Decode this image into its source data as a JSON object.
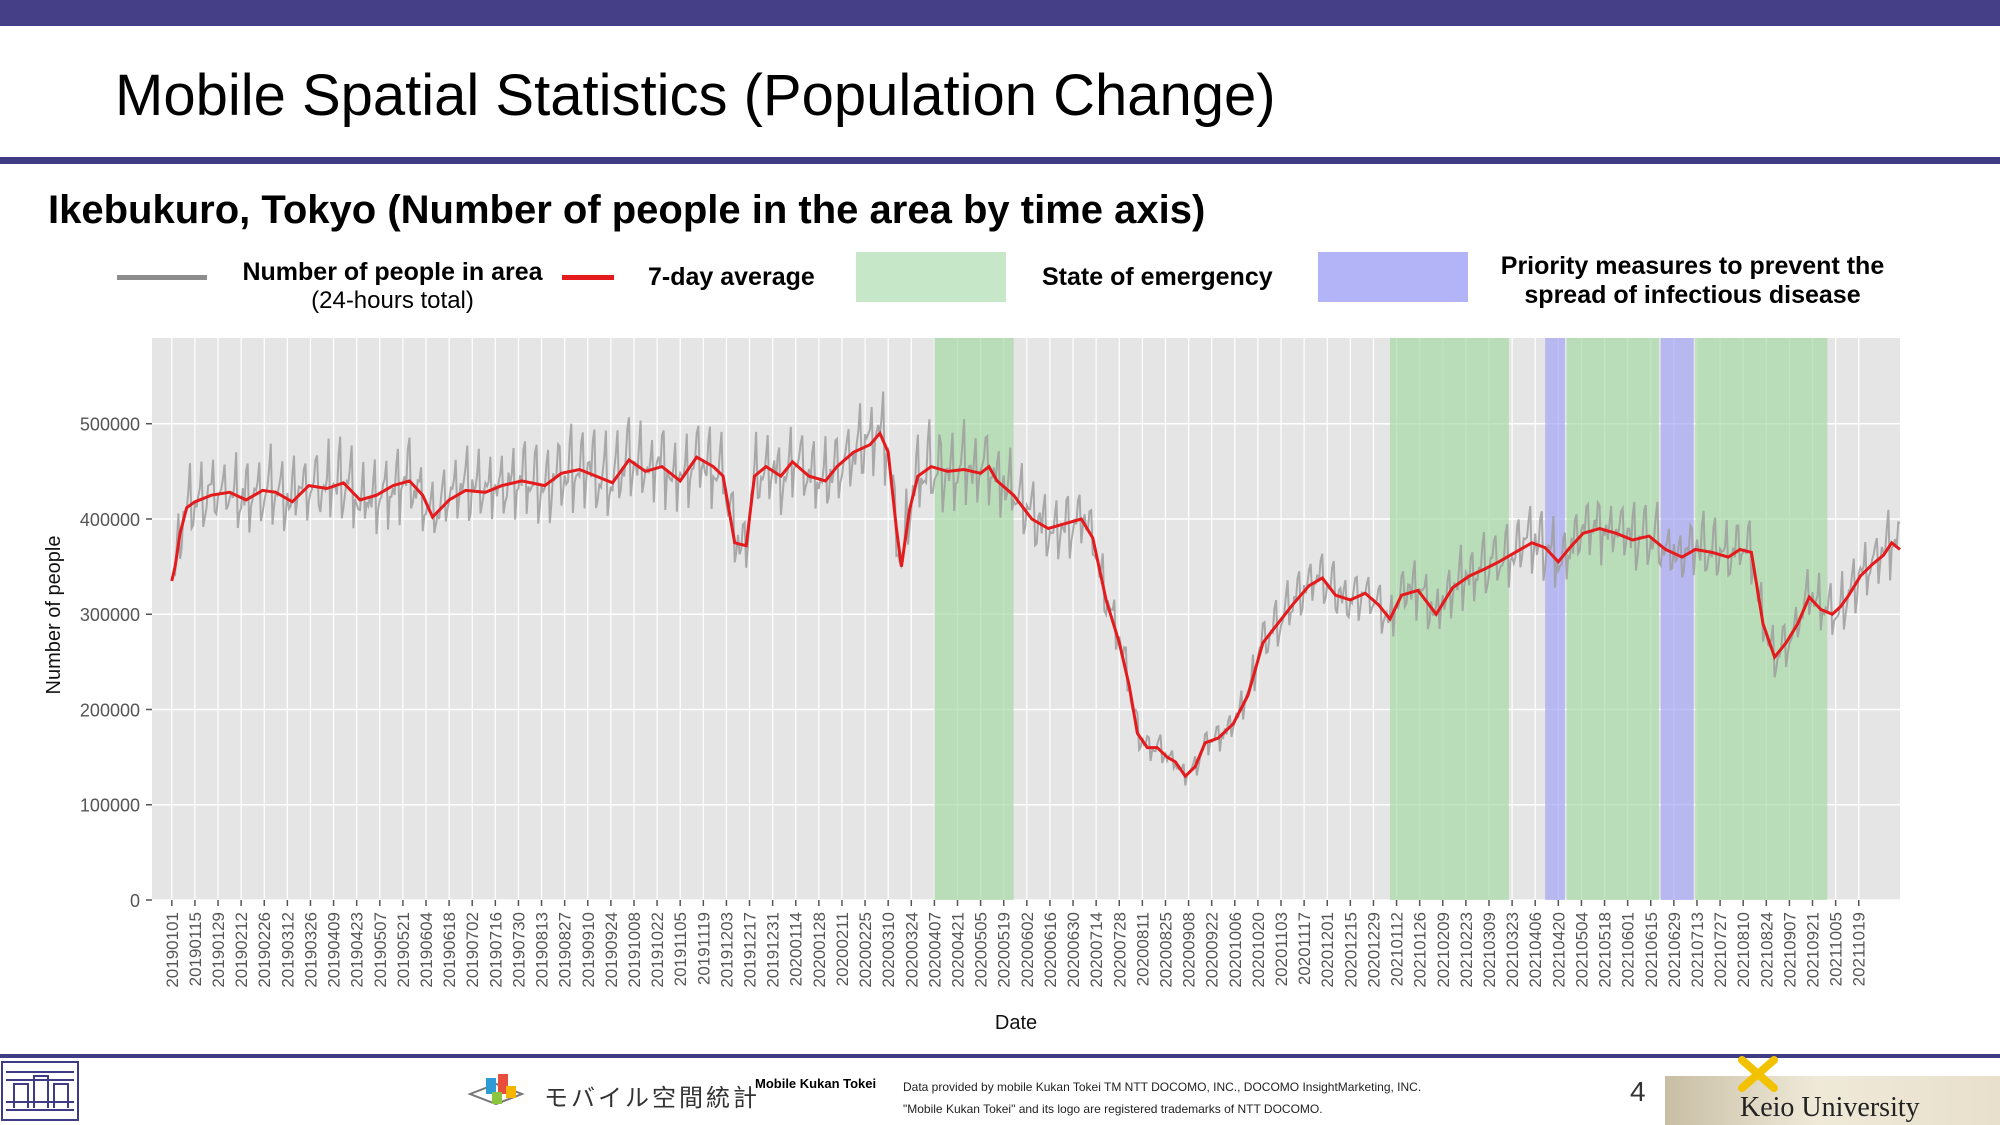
{
  "slide": {
    "title": "Mobile Spatial Statistics (Population Change)",
    "subtitle": "Ikebukuro, Tokyo (Number of people in the area by time axis)",
    "page_number": "4"
  },
  "legend": {
    "raw_label": "Number of people in area",
    "raw_sublabel": "(24-hours total)",
    "avg_label": "7-day average",
    "emergency_label": "State of emergency",
    "priority_label_line1": "Priority measures to prevent the",
    "priority_label_line2": "spread of infectious disease"
  },
  "colors": {
    "raw_series": "#9e9e9e",
    "avg_series": "#e41a1c",
    "emergency": "#a6d8a6",
    "priority": "#a5a5f5",
    "panel": "#e5e5e5",
    "header_bar": "#453f87"
  },
  "footer": {
    "mk_jp": "モバイル空間統計",
    "mk_en": "Mobile Kukan Tokei",
    "credit_line1": "Data provided by mobile Kukan Tokei TM NTT DOCOMO, INC., DOCOMO InsightMarketing, INC.",
    "credit_line2": "\"Mobile Kukan Tokei\" and its logo are registered trademarks of NTT DOCOMO.",
    "university": "Keio University"
  },
  "chart_data": {
    "type": "line",
    "xlabel": "Date",
    "ylabel": "Number of people",
    "ylim": [
      0,
      590000
    ],
    "yticks": [
      0,
      100000,
      200000,
      300000,
      400000,
      500000
    ],
    "xlim": [
      "2018-12-20",
      "2021-11-13"
    ],
    "xtick_labels": [
      "20190101",
      "20190115",
      "20190129",
      "20190212",
      "20190226",
      "20190312",
      "20190326",
      "20190409",
      "20190423",
      "20190507",
      "20190521",
      "20190604",
      "20190618",
      "20190702",
      "20190716",
      "20190730",
      "20190813",
      "20190827",
      "20190910",
      "20190924",
      "20191008",
      "20191022",
      "20191105",
      "20191119",
      "20191203",
      "20191217",
      "20191231",
      "20200114",
      "20200128",
      "20200211",
      "20200225",
      "20200310",
      "20200324",
      "20200407",
      "20200421",
      "20200505",
      "20200519",
      "20200602",
      "20200616",
      "20200630",
      "20200714",
      "20200728",
      "20200811",
      "20200825",
      "20200908",
      "20200922",
      "20201006",
      "20201020",
      "20201103",
      "20201117",
      "20201201",
      "20201215",
      "20201229",
      "20210112",
      "20210126",
      "20210209",
      "20210223",
      "20210309",
      "20210323",
      "20210406",
      "20210420",
      "20210504",
      "20210518",
      "20210601",
      "20210615",
      "20210629",
      "20210713",
      "20210727",
      "20210810",
      "20210824",
      "20210907",
      "20210921",
      "20211005",
      "20211019"
    ],
    "grid": true,
    "shaded_periods": [
      {
        "type": "emergency",
        "start": "2020-04-07",
        "end": "2020-05-25"
      },
      {
        "type": "emergency",
        "start": "2021-01-08",
        "end": "2021-03-21"
      },
      {
        "type": "priority",
        "start": "2021-04-12",
        "end": "2021-04-24"
      },
      {
        "type": "emergency",
        "start": "2021-04-25",
        "end": "2021-06-20"
      },
      {
        "type": "priority",
        "start": "2021-06-21",
        "end": "2021-07-11"
      },
      {
        "type": "emergency",
        "start": "2021-07-12",
        "end": "2021-09-30"
      }
    ],
    "series": [
      {
        "name": "7-day average",
        "points": [
          [
            "2019-01-01",
            335000
          ],
          [
            "2019-01-03",
            350000
          ],
          [
            "2019-01-06",
            385000
          ],
          [
            "2019-01-10",
            412000
          ],
          [
            "2019-01-15",
            418000
          ],
          [
            "2019-01-25",
            425000
          ],
          [
            "2019-02-05",
            428000
          ],
          [
            "2019-02-15",
            420000
          ],
          [
            "2019-02-25",
            430000
          ],
          [
            "2019-03-05",
            428000
          ],
          [
            "2019-03-15",
            418000
          ],
          [
            "2019-03-25",
            435000
          ],
          [
            "2019-04-05",
            432000
          ],
          [
            "2019-04-15",
            438000
          ],
          [
            "2019-04-25",
            420000
          ],
          [
            "2019-05-05",
            425000
          ],
          [
            "2019-05-15",
            435000
          ],
          [
            "2019-05-25",
            440000
          ],
          [
            "2019-06-02",
            425000
          ],
          [
            "2019-06-08",
            402000
          ],
          [
            "2019-06-18",
            420000
          ],
          [
            "2019-06-28",
            430000
          ],
          [
            "2019-07-10",
            428000
          ],
          [
            "2019-07-20",
            435000
          ],
          [
            "2019-08-01",
            440000
          ],
          [
            "2019-08-15",
            435000
          ],
          [
            "2019-08-25",
            448000
          ],
          [
            "2019-09-05",
            452000
          ],
          [
            "2019-09-15",
            445000
          ],
          [
            "2019-09-25",
            438000
          ],
          [
            "2019-10-05",
            462000
          ],
          [
            "2019-10-15",
            450000
          ],
          [
            "2019-10-25",
            455000
          ],
          [
            "2019-11-05",
            440000
          ],
          [
            "2019-11-15",
            465000
          ],
          [
            "2019-11-25",
            455000
          ],
          [
            "2019-12-01",
            445000
          ],
          [
            "2019-12-08",
            375000
          ],
          [
            "2019-12-15",
            372000
          ],
          [
            "2019-12-20",
            445000
          ],
          [
            "2019-12-27",
            455000
          ],
          [
            "2020-01-05",
            445000
          ],
          [
            "2020-01-12",
            460000
          ],
          [
            "2020-01-22",
            445000
          ],
          [
            "2020-02-01",
            440000
          ],
          [
            "2020-02-08",
            455000
          ],
          [
            "2020-02-18",
            470000
          ],
          [
            "2020-02-28",
            478000
          ],
          [
            "2020-03-05",
            490000
          ],
          [
            "2020-03-10",
            470000
          ],
          [
            "2020-03-15",
            390000
          ],
          [
            "2020-03-18",
            350000
          ],
          [
            "2020-03-23",
            410000
          ],
          [
            "2020-03-28",
            445000
          ],
          [
            "2020-04-05",
            455000
          ],
          [
            "2020-04-15",
            450000
          ],
          [
            "2020-04-25",
            452000
          ],
          [
            "2020-05-05",
            448000
          ],
          [
            "2020-05-10",
            455000
          ],
          [
            "2020-05-15",
            440000
          ],
          [
            "2020-05-25",
            425000
          ],
          [
            "2020-06-05",
            400000
          ],
          [
            "2020-06-15",
            390000
          ],
          [
            "2020-06-25",
            395000
          ],
          [
            "2020-07-05",
            400000
          ],
          [
            "2020-07-12",
            380000
          ],
          [
            "2020-07-20",
            315000
          ],
          [
            "2020-07-28",
            270000
          ],
          [
            "2020-08-03",
            225000
          ],
          [
            "2020-08-08",
            175000
          ],
          [
            "2020-08-14",
            160000
          ],
          [
            "2020-08-20",
            160000
          ],
          [
            "2020-08-26",
            150000
          ],
          [
            "2020-08-31",
            145000
          ],
          [
            "2020-09-06",
            130000
          ],
          [
            "2020-09-12",
            140000
          ],
          [
            "2020-09-18",
            165000
          ],
          [
            "2020-09-26",
            170000
          ],
          [
            "2020-10-05",
            185000
          ],
          [
            "2020-10-14",
            215000
          ],
          [
            "2020-10-23",
            270000
          ],
          [
            "2020-11-01",
            290000
          ],
          [
            "2020-11-10",
            310000
          ],
          [
            "2020-11-20",
            330000
          ],
          [
            "2020-11-28",
            338000
          ],
          [
            "2020-12-06",
            320000
          ],
          [
            "2020-12-15",
            315000
          ],
          [
            "2020-12-24",
            322000
          ],
          [
            "2021-01-01",
            310000
          ],
          [
            "2021-01-08",
            295000
          ],
          [
            "2021-01-15",
            320000
          ],
          [
            "2021-01-25",
            325000
          ],
          [
            "2021-02-05",
            300000
          ],
          [
            "2021-02-15",
            328000
          ],
          [
            "2021-02-25",
            340000
          ],
          [
            "2021-03-07",
            348000
          ],
          [
            "2021-03-15",
            355000
          ],
          [
            "2021-03-25",
            365000
          ],
          [
            "2021-04-04",
            375000
          ],
          [
            "2021-04-12",
            370000
          ],
          [
            "2021-04-20",
            355000
          ],
          [
            "2021-04-27",
            370000
          ],
          [
            "2021-05-05",
            385000
          ],
          [
            "2021-05-15",
            390000
          ],
          [
            "2021-05-25",
            385000
          ],
          [
            "2021-06-04",
            378000
          ],
          [
            "2021-06-14",
            382000
          ],
          [
            "2021-06-24",
            368000
          ],
          [
            "2021-07-04",
            360000
          ],
          [
            "2021-07-12",
            368000
          ],
          [
            "2021-07-22",
            365000
          ],
          [
            "2021-08-01",
            360000
          ],
          [
            "2021-08-08",
            368000
          ],
          [
            "2021-08-15",
            365000
          ],
          [
            "2021-08-22",
            290000
          ],
          [
            "2021-08-29",
            255000
          ],
          [
            "2021-09-05",
            270000
          ],
          [
            "2021-09-12",
            290000
          ],
          [
            "2021-09-19",
            318000
          ],
          [
            "2021-09-26",
            305000
          ],
          [
            "2021-10-03",
            300000
          ],
          [
            "2021-10-08",
            308000
          ],
          [
            "2021-10-13",
            320000
          ],
          [
            "2021-10-20",
            340000
          ],
          [
            "2021-10-27",
            352000
          ],
          [
            "2021-11-03",
            362000
          ],
          [
            "2021-11-08",
            375000
          ],
          [
            "2021-11-13",
            368000
          ]
        ]
      }
    ]
  }
}
